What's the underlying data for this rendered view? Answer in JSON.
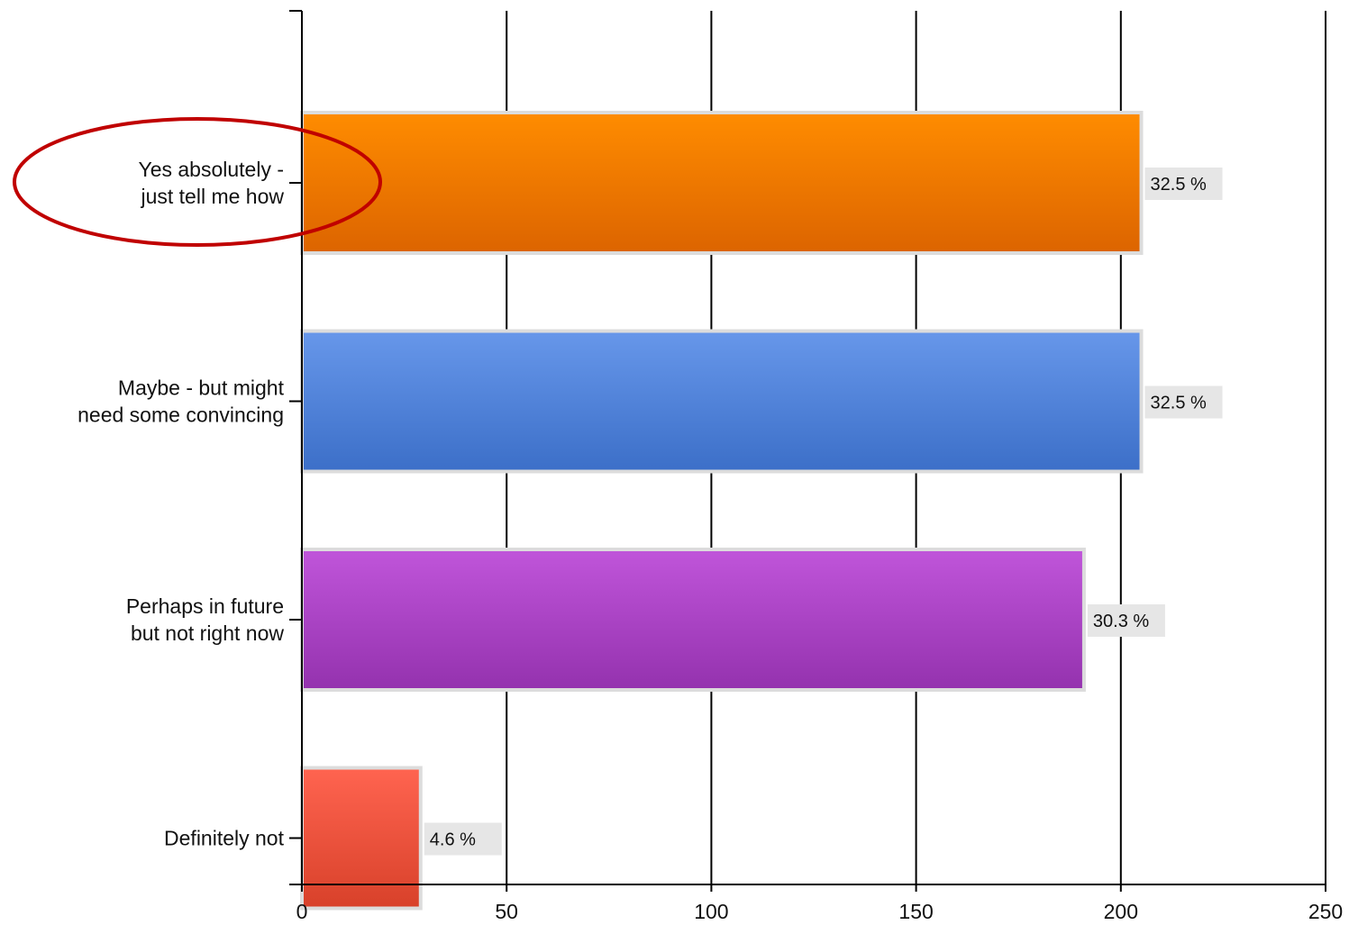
{
  "chart_data": {
    "type": "bar",
    "orientation": "horizontal",
    "title": "",
    "xlabel": "",
    "ylabel": "",
    "xlim": [
      0,
      250
    ],
    "x_ticks": [
      "0",
      "50",
      "100",
      "150",
      "200",
      "250"
    ],
    "grid": "vertical",
    "legend": "none",
    "categories": [
      "Yes absolutely - just tell me how",
      "Maybe - but  might need some convincing",
      "Perhaps in future but not right now",
      "Definitely not"
    ],
    "category_label_lines": [
      [
        "Yes absolutely -",
        "just tell me how"
      ],
      [
        "Maybe - but  might",
        "need some convincing"
      ],
      [
        "Perhaps in future",
        "but not right now"
      ],
      [
        "Definitely not"
      ]
    ],
    "values": [
      205,
      205,
      191,
      29
    ],
    "data_labels": [
      "32.5 %",
      "32.5 %",
      "30.3 %",
      "4.6 %"
    ],
    "bar_colors": [
      {
        "top": "#ff8c00",
        "bottom": "#dc6400"
      },
      {
        "top": "#6797ea",
        "bottom": "#3c6fc8"
      },
      {
        "top": "#c055da",
        "bottom": "#9432ae"
      },
      {
        "top": "#ff6450",
        "bottom": "#d8412a"
      }
    ],
    "highlight": {
      "category_index": 0,
      "shape": "ellipse",
      "color": "#c00000"
    }
  }
}
